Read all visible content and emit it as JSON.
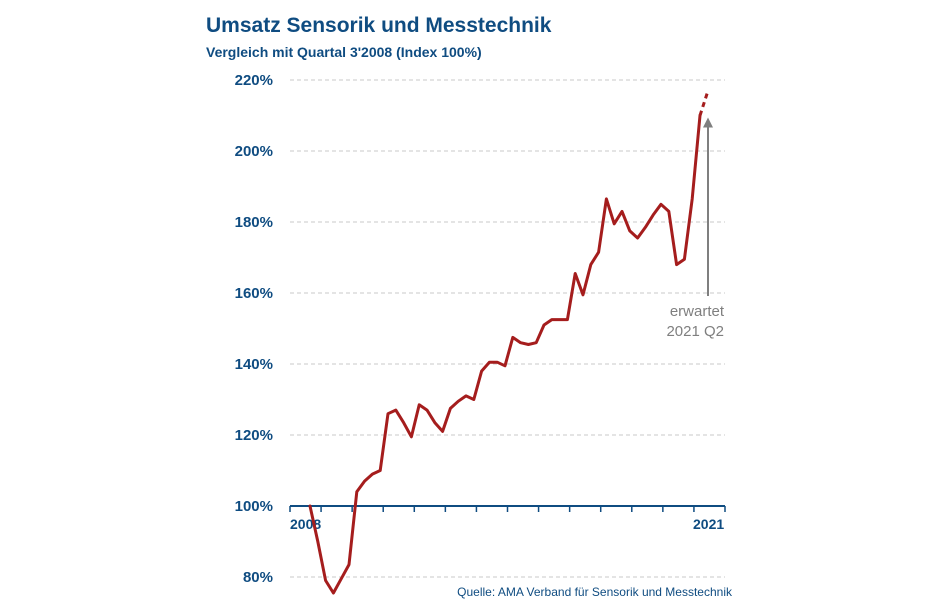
{
  "chart_data": {
    "type": "line",
    "title": "Umsatz Sensorik und Messtechnik",
    "subtitle": "Vergleich mit Quartal 3'2008 (Index 100%)",
    "xlabel": "",
    "ylabel": "",
    "x_start_label": "2008",
    "x_end_label": "2021",
    "ylim": [
      77,
      222
    ],
    "yticks": [
      80,
      100,
      120,
      140,
      160,
      180,
      200,
      220
    ],
    "ytick_labels": [
      "80%",
      "100%",
      "120%",
      "140%",
      "160%",
      "180%",
      "200%",
      "220%"
    ],
    "grid": true,
    "series": [
      {
        "values": [
          100,
          90,
          79,
          75.5,
          79.5,
          83.5,
          104,
          107,
          109,
          110,
          126,
          127,
          123.5,
          119.5,
          128.5,
          127,
          123.5,
          121,
          127.5,
          129.5,
          131,
          130,
          138,
          140.5,
          140.5,
          139.5,
          147.5,
          146,
          145.5,
          146,
          151,
          152.5,
          152.5,
          152.5,
          165.5,
          159.5,
          168,
          171.5,
          186.5,
          179.5,
          183,
          177.5,
          175.5,
          178.5,
          182,
          185,
          183,
          168,
          169.5,
          186.5,
          210
        ],
        "color": "#a51d1d"
      }
    ],
    "forecast": {
      "values": [
        210,
        217
      ],
      "label_line1": "erwartet",
      "label_line2": "2021 Q2"
    },
    "source": "Quelle: AMA Verband für Sensorik und Messtechnik",
    "colors": {
      "title": "#0f4c81",
      "axis": "#0f4c81",
      "grid": "#c8c8c8",
      "line": "#a51d1d",
      "arrow": "#7f7f7f"
    }
  }
}
